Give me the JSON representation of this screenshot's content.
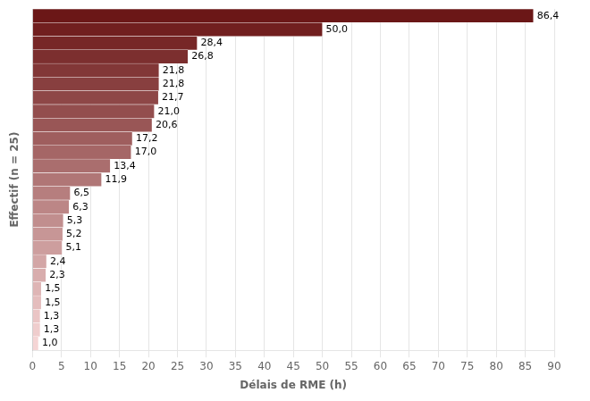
{
  "chart_data": {
    "type": "bar",
    "orientation": "horizontal",
    "xlabel": "Délais de RME (h)",
    "ylabel": "Effectif (n = 25)",
    "categories": [
      null,
      null,
      null,
      null,
      null,
      null,
      null,
      null,
      null,
      null,
      null,
      null,
      null,
      null,
      null,
      null,
      null,
      null,
      null,
      null,
      null,
      null,
      null,
      null,
      null
    ],
    "values": [
      86.4,
      50.0,
      28.4,
      26.8,
      21.8,
      21.8,
      21.7,
      21.0,
      20.6,
      17.2,
      17.0,
      13.4,
      11.9,
      6.5,
      6.3,
      5.3,
      5.2,
      5.1,
      2.4,
      2.3,
      1.5,
      1.5,
      1.3,
      1.3,
      1.0
    ],
    "value_labels": [
      "86,4",
      "50,0",
      "28,4",
      "26,8",
      "21,8",
      "21,8",
      "21,7",
      "21,0",
      "20,6",
      "17,2",
      "17,0",
      "13,4",
      "11,9",
      "6,5",
      "6,3",
      "5,3",
      "5,2",
      "5,1",
      "2,4",
      "2,3",
      "1,5",
      "1,5",
      "1,3",
      "1,3",
      "1,0"
    ],
    "colors": [
      "#6b1717",
      "#711f1f",
      "#772727",
      "#7c2f2f",
      "#823737",
      "#883f3f",
      "#8e4747",
      "#934e4e",
      "#995656",
      "#9f5e5e",
      "#a56666",
      "#aa6e6e",
      "#b07676",
      "#b67e7e",
      "#bc8686",
      "#c18e8e",
      "#c79696",
      "#cd9e9e",
      "#d3a6a6",
      "#d8adad",
      "#deb5b5",
      "#e4bdbd",
      "#eac5c5",
      "#efcdcd",
      "#f5d5d5"
    ],
    "xlim": [
      0,
      90
    ],
    "xticks": [
      0,
      5,
      10,
      15,
      20,
      25,
      30,
      35,
      40,
      45,
      50,
      55,
      60,
      65,
      70,
      75,
      80,
      85,
      90
    ],
    "grid": true,
    "data_labels": true,
    "tick_labels": "x"
  }
}
